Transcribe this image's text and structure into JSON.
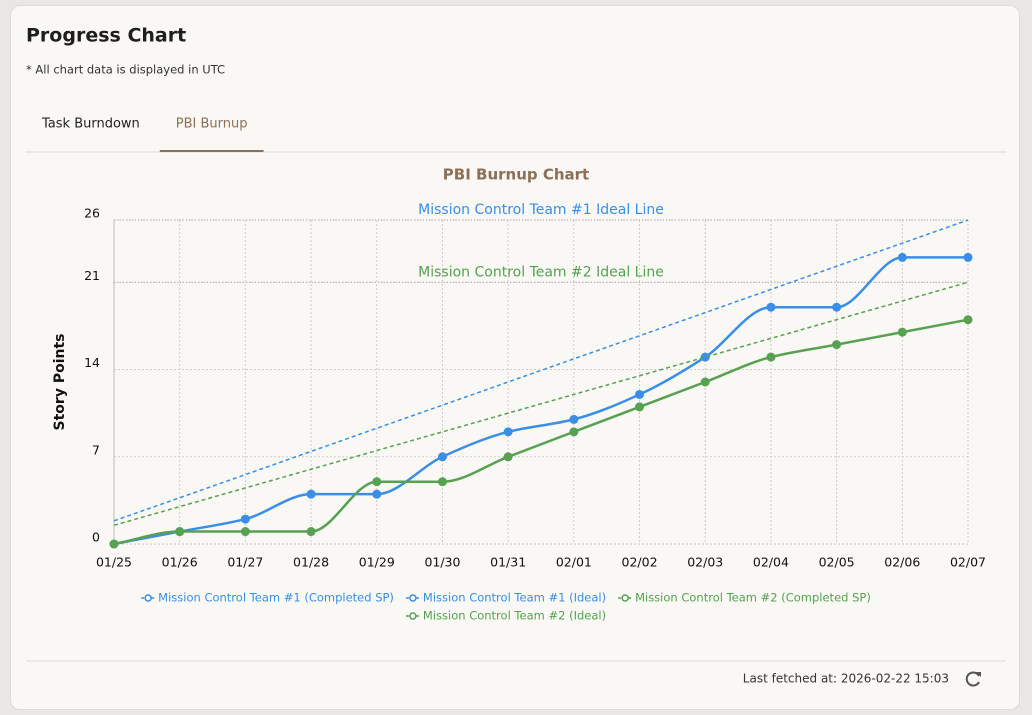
{
  "header": {
    "title": "Progress Chart",
    "note": "* All chart data is displayed in UTC"
  },
  "tabs": [
    {
      "label": "Task Burndown",
      "active": false
    },
    {
      "label": "PBI Burnup",
      "active": true
    }
  ],
  "chart_data": {
    "type": "line",
    "title": "PBI Burnup Chart",
    "y_label": "Story Points",
    "categories": [
      "01/25",
      "01/26",
      "01/27",
      "01/28",
      "01/29",
      "01/30",
      "01/31",
      "02/01",
      "02/02",
      "02/03",
      "02/04",
      "02/05",
      "02/06",
      "02/07"
    ],
    "ylim": [
      0,
      26
    ],
    "yticks": [
      0,
      7,
      14,
      21,
      26
    ],
    "grid": true,
    "legend": "bottom",
    "series": [
      {
        "name": "Mission Control Team #1 (Completed SP)",
        "color": "#3a8ee6",
        "style": "solid",
        "values": [
          0,
          1,
          2,
          4,
          4,
          7,
          9,
          10,
          12,
          15,
          19,
          19,
          23,
          23
        ]
      },
      {
        "name": "Mission Control Team #1 (Ideal)",
        "color": "#3a8ee6",
        "style": "dashed",
        "values": [
          1.86,
          3.71,
          5.57,
          7.43,
          9.29,
          11.14,
          13,
          14.86,
          16.71,
          18.57,
          20.43,
          22.29,
          24.14,
          26
        ]
      },
      {
        "name": "Mission Control Team #2 (Completed SP)",
        "color": "#58a052",
        "style": "solid",
        "values": [
          0,
          1,
          1,
          1,
          5,
          5,
          7,
          9,
          11,
          13,
          15,
          16,
          17,
          18
        ]
      },
      {
        "name": "Mission Control Team #2 (Ideal)",
        "color": "#58a052",
        "style": "dashed",
        "values": [
          1.5,
          3,
          4.5,
          6,
          7.5,
          9,
          10.5,
          12,
          13.5,
          15,
          16.5,
          18,
          19.5,
          21
        ]
      }
    ],
    "annotations": [
      {
        "text": "Mission Control Team #1 Ideal Line",
        "value": 26,
        "color": "#3a8ee6"
      },
      {
        "text": "Mission Control Team #2 Ideal Line",
        "value": 21,
        "color": "#58a052"
      }
    ]
  },
  "footer": {
    "last_fetched": "Last fetched at: 2026-02-22 15:03"
  }
}
